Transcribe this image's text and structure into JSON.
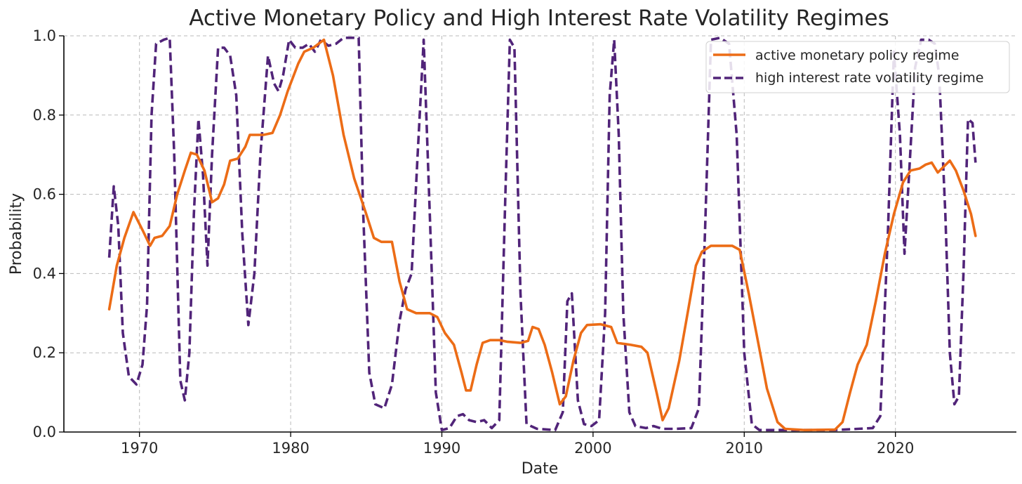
{
  "chart_data": {
    "type": "line",
    "title": "Active Monetary Policy and High Interest Rate Volatility Regimes",
    "xlabel": "Date",
    "ylabel": "Probability",
    "xlim": [
      1965,
      2028
    ],
    "ylim": [
      0,
      1
    ],
    "x_ticks": [
      1970,
      1980,
      1990,
      2000,
      2010,
      2020
    ],
    "y_ticks": [
      0.0,
      0.2,
      0.4,
      0.6,
      0.8,
      1.0
    ],
    "x_tick_labels": [
      "1970",
      "1980",
      "1990",
      "2000",
      "2010",
      "2020"
    ],
    "y_tick_labels": [
      "0.0",
      "0.2",
      "0.4",
      "0.6",
      "0.8",
      "1.0"
    ],
    "grid": true,
    "legend_position": "top-right",
    "series": [
      {
        "name": "active monetary policy regime",
        "color": "#ec6c16",
        "style": "solid",
        "points": [
          [
            1968.0,
            0.31
          ],
          [
            1968.5,
            0.42
          ],
          [
            1969.0,
            0.49
          ],
          [
            1969.6,
            0.555
          ],
          [
            1970.2,
            0.51
          ],
          [
            1970.7,
            0.47
          ],
          [
            1971.0,
            0.49
          ],
          [
            1971.5,
            0.495
          ],
          [
            1972.0,
            0.52
          ],
          [
            1972.5,
            0.6
          ],
          [
            1973.0,
            0.66
          ],
          [
            1973.4,
            0.705
          ],
          [
            1973.8,
            0.7
          ],
          [
            1974.3,
            0.66
          ],
          [
            1974.8,
            0.58
          ],
          [
            1975.2,
            0.59
          ],
          [
            1975.6,
            0.625
          ],
          [
            1976.0,
            0.685
          ],
          [
            1976.5,
            0.69
          ],
          [
            1977.0,
            0.72
          ],
          [
            1977.3,
            0.75
          ],
          [
            1978.2,
            0.75
          ],
          [
            1978.8,
            0.755
          ],
          [
            1979.3,
            0.8
          ],
          [
            1979.8,
            0.86
          ],
          [
            1980.5,
            0.93
          ],
          [
            1980.9,
            0.96
          ],
          [
            1981.5,
            0.97
          ],
          [
            1982.2,
            0.99
          ],
          [
            1982.8,
            0.9
          ],
          [
            1983.5,
            0.75
          ],
          [
            1984.2,
            0.64
          ],
          [
            1985.0,
            0.55
          ],
          [
            1985.5,
            0.49
          ],
          [
            1986.0,
            0.48
          ],
          [
            1986.7,
            0.48
          ],
          [
            1987.2,
            0.38
          ],
          [
            1987.7,
            0.31
          ],
          [
            1988.3,
            0.3
          ],
          [
            1989.2,
            0.3
          ],
          [
            1989.7,
            0.29
          ],
          [
            1990.2,
            0.25
          ],
          [
            1990.8,
            0.22
          ],
          [
            1991.3,
            0.15
          ],
          [
            1991.6,
            0.105
          ],
          [
            1991.9,
            0.105
          ],
          [
            1992.3,
            0.17
          ],
          [
            1992.7,
            0.225
          ],
          [
            1993.2,
            0.232
          ],
          [
            1993.8,
            0.232
          ],
          [
            1994.3,
            0.228
          ],
          [
            1995.2,
            0.225
          ],
          [
            1995.7,
            0.23
          ],
          [
            1996.0,
            0.265
          ],
          [
            1996.4,
            0.26
          ],
          [
            1996.8,
            0.22
          ],
          [
            1997.3,
            0.15
          ],
          [
            1997.8,
            0.07
          ],
          [
            1998.2,
            0.09
          ],
          [
            1998.7,
            0.18
          ],
          [
            1999.2,
            0.25
          ],
          [
            1999.6,
            0.27
          ],
          [
            2000.5,
            0.272
          ],
          [
            2001.2,
            0.265
          ],
          [
            2001.6,
            0.225
          ],
          [
            2002.5,
            0.22
          ],
          [
            2003.2,
            0.215
          ],
          [
            2003.6,
            0.2
          ],
          [
            2004.2,
            0.1
          ],
          [
            2004.6,
            0.03
          ],
          [
            2005.0,
            0.06
          ],
          [
            2005.7,
            0.18
          ],
          [
            2006.3,
            0.31
          ],
          [
            2006.8,
            0.42
          ],
          [
            2007.2,
            0.455
          ],
          [
            2007.8,
            0.47
          ],
          [
            2009.2,
            0.47
          ],
          [
            2009.7,
            0.46
          ],
          [
            2010.3,
            0.35
          ],
          [
            2010.9,
            0.23
          ],
          [
            2011.5,
            0.11
          ],
          [
            2012.2,
            0.025
          ],
          [
            2012.7,
            0.008
          ],
          [
            2014.0,
            0.005
          ],
          [
            2016.0,
            0.006
          ],
          [
            2016.5,
            0.025
          ],
          [
            2017.0,
            0.1
          ],
          [
            2017.5,
            0.17
          ],
          [
            2018.1,
            0.22
          ],
          [
            2018.7,
            0.33
          ],
          [
            2019.3,
            0.45
          ],
          [
            2019.9,
            0.55
          ],
          [
            2020.5,
            0.63
          ],
          [
            2021.0,
            0.66
          ],
          [
            2021.6,
            0.665
          ],
          [
            2022.0,
            0.675
          ],
          [
            2022.4,
            0.68
          ],
          [
            2022.8,
            0.655
          ],
          [
            2023.2,
            0.67
          ],
          [
            2023.6,
            0.685
          ],
          [
            2024.0,
            0.66
          ],
          [
            2024.5,
            0.61
          ],
          [
            2025.0,
            0.55
          ],
          [
            2025.3,
            0.495
          ]
        ]
      },
      {
        "name": "high interest rate volatility regime",
        "color": "#512479",
        "style": "dashed",
        "points": [
          [
            1968.0,
            0.44
          ],
          [
            1968.3,
            0.62
          ],
          [
            1968.6,
            0.52
          ],
          [
            1968.9,
            0.25
          ],
          [
            1969.3,
            0.14
          ],
          [
            1969.8,
            0.12
          ],
          [
            1970.2,
            0.17
          ],
          [
            1970.5,
            0.32
          ],
          [
            1970.8,
            0.8
          ],
          [
            1971.1,
            0.98
          ],
          [
            1971.6,
            0.99
          ],
          [
            1972.0,
            0.995
          ],
          [
            1972.3,
            0.7
          ],
          [
            1972.7,
            0.13
          ],
          [
            1973.0,
            0.08
          ],
          [
            1973.3,
            0.2
          ],
          [
            1973.6,
            0.55
          ],
          [
            1973.9,
            0.79
          ],
          [
            1974.2,
            0.65
          ],
          [
            1974.5,
            0.42
          ],
          [
            1974.8,
            0.7
          ],
          [
            1975.2,
            0.97
          ],
          [
            1975.6,
            0.97
          ],
          [
            1976.0,
            0.95
          ],
          [
            1976.4,
            0.85
          ],
          [
            1976.8,
            0.5
          ],
          [
            1977.2,
            0.27
          ],
          [
            1977.6,
            0.4
          ],
          [
            1978.0,
            0.7
          ],
          [
            1978.5,
            0.95
          ],
          [
            1978.9,
            0.88
          ],
          [
            1979.2,
            0.86
          ],
          [
            1979.5,
            0.9
          ],
          [
            1979.9,
            0.99
          ],
          [
            1980.3,
            0.97
          ],
          [
            1980.8,
            0.97
          ],
          [
            1981.2,
            0.98
          ],
          [
            1981.6,
            0.96
          ],
          [
            1982.0,
            0.99
          ],
          [
            1982.5,
            0.975
          ],
          [
            1983.0,
            0.98
          ],
          [
            1983.5,
            0.995
          ],
          [
            1984.5,
            0.995
          ],
          [
            1984.8,
            0.55
          ],
          [
            1985.2,
            0.15
          ],
          [
            1985.6,
            0.07
          ],
          [
            1986.2,
            0.06
          ],
          [
            1986.7,
            0.12
          ],
          [
            1987.2,
            0.28
          ],
          [
            1987.6,
            0.36
          ],
          [
            1988.0,
            0.4
          ],
          [
            1988.4,
            0.7
          ],
          [
            1988.8,
            0.99
          ],
          [
            1989.2,
            0.55
          ],
          [
            1989.6,
            0.1
          ],
          [
            1990.0,
            0.005
          ],
          [
            1990.5,
            0.01
          ],
          [
            1991.0,
            0.04
          ],
          [
            1991.4,
            0.045
          ],
          [
            1991.8,
            0.03
          ],
          [
            1992.3,
            0.025
          ],
          [
            1992.8,
            0.03
          ],
          [
            1993.3,
            0.01
          ],
          [
            1993.8,
            0.03
          ],
          [
            1994.2,
            0.6
          ],
          [
            1994.5,
            0.99
          ],
          [
            1994.8,
            0.97
          ],
          [
            1995.2,
            0.35
          ],
          [
            1995.6,
            0.02
          ],
          [
            1996.3,
            0.008
          ],
          [
            1997.5,
            0.005
          ],
          [
            1998.0,
            0.05
          ],
          [
            1998.3,
            0.33
          ],
          [
            1998.6,
            0.35
          ],
          [
            1999.0,
            0.08
          ],
          [
            1999.4,
            0.02
          ],
          [
            1999.9,
            0.015
          ],
          [
            2000.4,
            0.03
          ],
          [
            2000.8,
            0.3
          ],
          [
            2001.1,
            0.85
          ],
          [
            2001.4,
            0.99
          ],
          [
            2001.7,
            0.75
          ],
          [
            2002.0,
            0.3
          ],
          [
            2002.4,
            0.05
          ],
          [
            2002.8,
            0.015
          ],
          [
            2003.5,
            0.01
          ],
          [
            2004.0,
            0.015
          ],
          [
            2004.6,
            0.008
          ],
          [
            2005.5,
            0.008
          ],
          [
            2006.5,
            0.01
          ],
          [
            2007.0,
            0.06
          ],
          [
            2007.4,
            0.5
          ],
          [
            2007.8,
            0.99
          ],
          [
            2008.4,
            0.995
          ],
          [
            2009.0,
            0.98
          ],
          [
            2009.5,
            0.75
          ],
          [
            2010.0,
            0.2
          ],
          [
            2010.5,
            0.02
          ],
          [
            2011.0,
            0.005
          ],
          [
            2016.0,
            0.005
          ],
          [
            2017.5,
            0.008
          ],
          [
            2018.5,
            0.01
          ],
          [
            2019.0,
            0.04
          ],
          [
            2019.5,
            0.5
          ],
          [
            2019.9,
            0.96
          ],
          [
            2020.3,
            0.75
          ],
          [
            2020.6,
            0.45
          ],
          [
            2020.9,
            0.65
          ],
          [
            2021.3,
            0.92
          ],
          [
            2021.7,
            0.99
          ],
          [
            2022.2,
            0.99
          ],
          [
            2022.6,
            0.98
          ],
          [
            2022.9,
            0.9
          ],
          [
            2023.3,
            0.55
          ],
          [
            2023.6,
            0.2
          ],
          [
            2023.9,
            0.07
          ],
          [
            2024.2,
            0.09
          ],
          [
            2024.5,
            0.4
          ],
          [
            2024.8,
            0.79
          ],
          [
            2025.1,
            0.78
          ],
          [
            2025.3,
            0.68
          ]
        ]
      }
    ]
  }
}
